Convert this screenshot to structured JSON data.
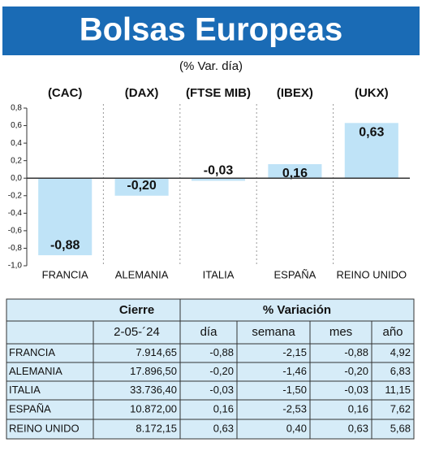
{
  "chart_data": {
    "type": "bar",
    "title": "Bolsas Europeas",
    "subtitle": "(% Var. día)",
    "index_labels": [
      "(CAC)",
      "(DAX)",
      "(FTSE MIB)",
      "(IBEX)",
      "(UKX)"
    ],
    "categories": [
      "FRANCIA",
      "ALEMANIA",
      "ITALIA",
      "ESPAÑA",
      "REINO UNIDO"
    ],
    "values": [
      -0.88,
      -0.2,
      -0.03,
      0.16,
      0.63
    ],
    "value_labels": [
      "-0,88",
      "-0,20",
      "-0,03",
      "0,16",
      "0,63"
    ],
    "color": "#bfe3f7",
    "ylim": [
      -1.0,
      0.8
    ],
    "yticks": [
      {
        "value": -1.0,
        "label": "-1,0"
      },
      {
        "value": -0.8,
        "label": "-0,8"
      },
      {
        "value": -0.6,
        "label": "-0,6"
      },
      {
        "value": -0.4,
        "label": "-0,4"
      },
      {
        "value": -0.2,
        "label": "-0,2"
      },
      {
        "value": 0,
        "label": "0,0"
      },
      {
        "value": 0.2,
        "label": "0,2"
      },
      {
        "value": 0.4,
        "label": "0,4"
      },
      {
        "value": 0.6,
        "label": "0,6"
      },
      {
        "value": 0.8,
        "label": "0,8"
      }
    ]
  },
  "table": {
    "header": [
      "Cierre",
      "% Variación"
    ],
    "subheader": [
      "2-05-´24",
      "día",
      "semana",
      "mes",
      "año"
    ],
    "rows": [
      [
        "FRANCIA",
        "7.914,65",
        "-0,88",
        "-2,15",
        "-0,88",
        "4,92"
      ],
      [
        "ALEMANIA",
        "17.896,50",
        "-0,20",
        "-1,46",
        "-0,20",
        "6,83"
      ],
      [
        "ITALIA",
        "33.736,40",
        "-0,03",
        "-1,50",
        "-0,03",
        "11,15"
      ],
      [
        "ESPAÑA",
        "10.872,00",
        "0,16",
        "-2,53",
        "0,16",
        "7,62"
      ],
      [
        "REINO UNIDO",
        "8.172,15",
        "0,63",
        "0,40",
        "0,63",
        "5,68"
      ]
    ]
  }
}
